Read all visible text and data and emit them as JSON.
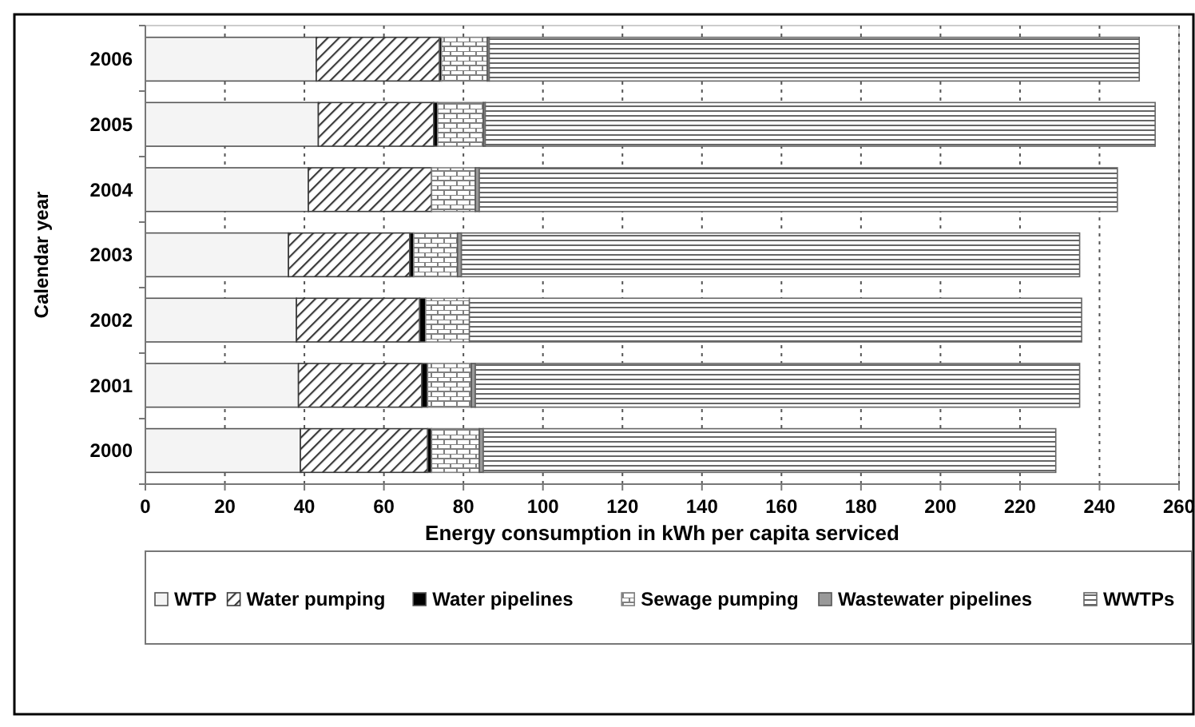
{
  "chart_data": {
    "type": "bar",
    "orientation": "horizontal",
    "stacked": true,
    "ylabel": "Calendar year",
    "xlabel": "Energy consumption in kWh per capita serviced",
    "categories": [
      "2006",
      "2005",
      "2004",
      "2003",
      "2002",
      "2001",
      "2000"
    ],
    "series": [
      {
        "name": "WTP",
        "color": "#f4f4f4",
        "values": [
          43,
          43.5,
          41,
          36,
          38,
          38.5,
          39
        ]
      },
      {
        "name": "Water pumping",
        "color": "#3a3a3a",
        "values": [
          31,
          29,
          31,
          30.5,
          31,
          31,
          32
        ]
      },
      {
        "name": "Water pipelines",
        "color": "#000000",
        "values": [
          0.5,
          1,
          null,
          1,
          1.5,
          1.5,
          1
        ]
      },
      {
        "name": "Sewage pumping",
        "color": "#808080",
        "values": [
          11.5,
          11.5,
          11,
          11,
          11,
          11,
          12
        ]
      },
      {
        "name": "Wastewater pipelines",
        "color": "#999999",
        "values": [
          0.5,
          0.5,
          1,
          1,
          null,
          1,
          1
        ]
      },
      {
        "name": "WWTPs",
        "color": "#666666",
        "values": [
          163.5,
          168.5,
          160.5,
          155.5,
          154,
          152,
          144
        ]
      }
    ],
    "xlim": [
      0,
      260
    ],
    "xticks": [
      0,
      20,
      40,
      60,
      80,
      100,
      120,
      140,
      160,
      180,
      200,
      220,
      240,
      260
    ],
    "grid": "x",
    "legend": "bottom"
  }
}
